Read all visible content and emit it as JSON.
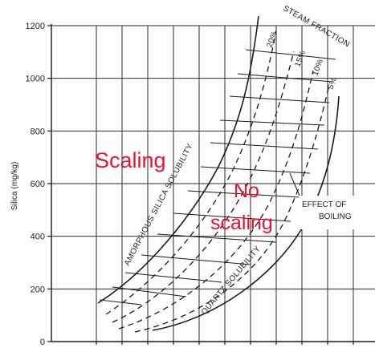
{
  "chart_data": {
    "type": "line",
    "ylabel": "Silica (mg/kg)",
    "ylim": [
      0,
      1200
    ],
    "y_ticks": [
      "0",
      "200",
      "400",
      "600",
      "800",
      "1000",
      "1200"
    ],
    "grid": true,
    "curves": [
      {
        "label": "AMORPHOUS SILICA SOLUBILITY",
        "style": "solid"
      },
      {
        "label": "QUARTZ SOLUBILITY",
        "style": "solid"
      }
    ],
    "steam_fraction": {
      "title": "STEAM FRACTION",
      "labels": [
        "20%",
        "15%",
        "10%",
        "5%"
      ]
    },
    "annotations": {
      "effect_line1": "EFFECT OF",
      "effect_line2": "BOILING"
    },
    "regions": {
      "scaling": "Scaling",
      "no_line1": "No",
      "no_line2": "scaling"
    },
    "colors": {
      "ink": "#1a1a1a",
      "grid": "#2a2a2a",
      "region_text": "#ee1133"
    }
  }
}
